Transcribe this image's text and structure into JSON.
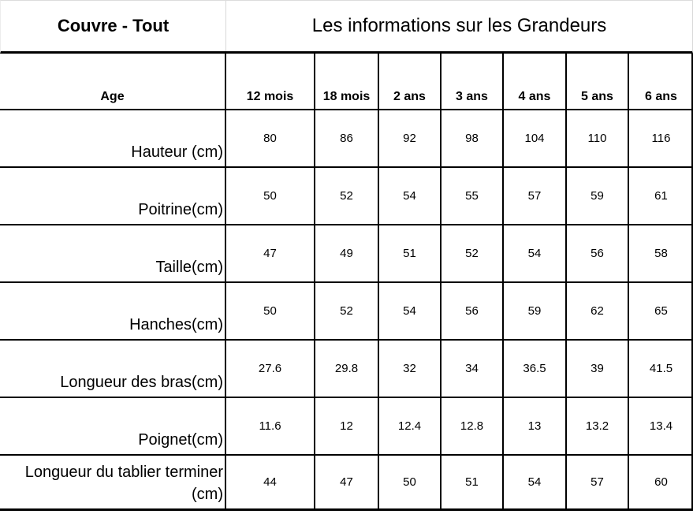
{
  "title": {
    "left": "Couvre - Tout",
    "right": "Les informations sur les Grandeurs"
  },
  "table": {
    "age_label": "Age",
    "columns": [
      "12 mois",
      "18 mois",
      "2 ans",
      "3 ans",
      "4 ans",
      "5 ans",
      "6 ans"
    ],
    "rows": [
      {
        "label": "Hauteur (cm)",
        "values": [
          "80",
          "86",
          "92",
          "98",
          "104",
          "110",
          "116"
        ]
      },
      {
        "label": "Poitrine(cm)",
        "values": [
          "50",
          "52",
          "54",
          "55",
          "57",
          "59",
          "61"
        ]
      },
      {
        "label": "Taille(cm)",
        "values": [
          "47",
          "49",
          "51",
          "52",
          "54",
          "56",
          "58"
        ]
      },
      {
        "label": "Hanches(cm)",
        "values": [
          "50",
          "52",
          "54",
          "56",
          "59",
          "62",
          "65"
        ]
      },
      {
        "label": "Longueur des bras(cm)",
        "values": [
          "27.6",
          "29.8",
          "32",
          "34",
          "36.5",
          "39",
          "41.5"
        ]
      },
      {
        "label": "Poignet(cm)",
        "values": [
          "11.6",
          "12",
          "12.4",
          "12.8",
          "13",
          "13.2",
          "13.4"
        ]
      },
      {
        "label": "Longueur du tablier terminer (cm)",
        "values": [
          "44",
          "47",
          "50",
          "51",
          "54",
          "57",
          "60"
        ]
      }
    ]
  },
  "colors": {
    "border_dark": "#000000",
    "border_light": "#d9d9d9",
    "background": "#ffffff"
  }
}
